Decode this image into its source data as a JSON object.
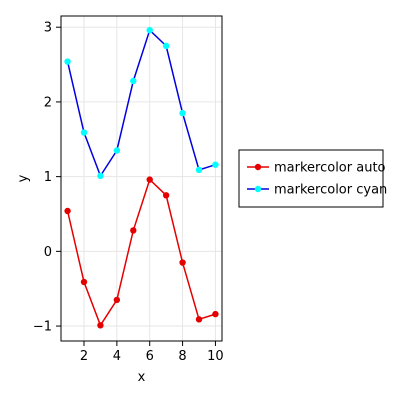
{
  "chart_data": {
    "type": "line",
    "xlabel": "x",
    "ylabel": "y",
    "xlim": [
      0.6,
      10.4
    ],
    "ylim": [
      -1.2,
      3.15
    ],
    "xticks": [
      2,
      4,
      6,
      8,
      10
    ],
    "yticks": [
      -1,
      0,
      1,
      2,
      3
    ],
    "ytick_labels": [
      "−1",
      "0",
      "1",
      "2",
      "3"
    ],
    "grid": true,
    "legend_position": "right",
    "x": [
      1,
      2,
      3,
      4,
      5,
      6,
      7,
      8,
      9,
      10
    ],
    "series": [
      {
        "name": "markercolor auto",
        "line_color": "#e50000",
        "marker_color": "#e50000",
        "values": [
          0.54,
          -0.41,
          -0.99,
          -0.65,
          0.28,
          0.96,
          0.75,
          -0.15,
          -0.91,
          -0.84
        ]
      },
      {
        "name": "markercolor cyan",
        "line_color": "#0000e0",
        "marker_color": "#00ffff",
        "values": [
          2.54,
          1.59,
          1.01,
          1.35,
          2.28,
          2.96,
          2.75,
          1.85,
          1.09,
          1.16
        ]
      }
    ]
  }
}
